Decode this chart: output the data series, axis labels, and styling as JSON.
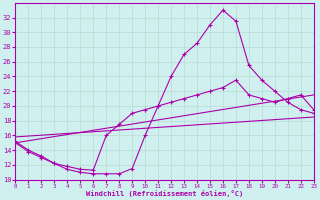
{
  "xlabel": "Windchill (Refroidissement éolien,°C)",
  "background_color": "#d0f0f0",
  "line_color": "#aa00aa",
  "xmin": 0,
  "xmax": 23,
  "ymin": 10,
  "ymax": 34,
  "yticks": [
    10,
    12,
    14,
    16,
    18,
    20,
    22,
    24,
    26,
    28,
    30,
    32
  ],
  "xticks": [
    0,
    1,
    2,
    3,
    4,
    5,
    6,
    7,
    8,
    9,
    10,
    11,
    12,
    13,
    14,
    15,
    16,
    17,
    18,
    19,
    20,
    21,
    22,
    23
  ],
  "curve1_x": [
    0,
    1,
    2,
    3,
    4,
    5,
    6,
    7,
    8,
    9,
    10,
    11,
    12,
    13,
    14,
    15,
    16,
    17,
    18,
    19,
    20,
    21,
    22,
    23
  ],
  "curve1_y": [
    15.0,
    13.8,
    13.0,
    12.2,
    11.4,
    11.0,
    10.8,
    10.8,
    10.8,
    11.5,
    16.0,
    20.0,
    24.0,
    27.0,
    28.5,
    31.0,
    33.0,
    31.5,
    25.5,
    23.5,
    22.0,
    20.5,
    19.5,
    19.0
  ],
  "curve2_x": [
    0,
    1,
    2,
    3,
    4,
    5,
    6,
    7,
    8,
    9,
    10,
    11,
    12,
    13,
    14,
    15,
    16,
    17,
    18,
    19,
    20,
    21,
    22,
    23
  ],
  "curve2_y": [
    15.2,
    14.0,
    13.2,
    12.2,
    11.8,
    11.4,
    11.3,
    16.0,
    17.5,
    19.0,
    19.5,
    20.0,
    20.5,
    21.0,
    21.5,
    22.0,
    22.5,
    23.5,
    21.5,
    21.0,
    20.5,
    21.0,
    21.5,
    19.5
  ],
  "line3_x": [
    0,
    23
  ],
  "line3_y": [
    15.0,
    21.5
  ],
  "line4_x": [
    0,
    23
  ],
  "line4_y": [
    15.8,
    18.5
  ]
}
